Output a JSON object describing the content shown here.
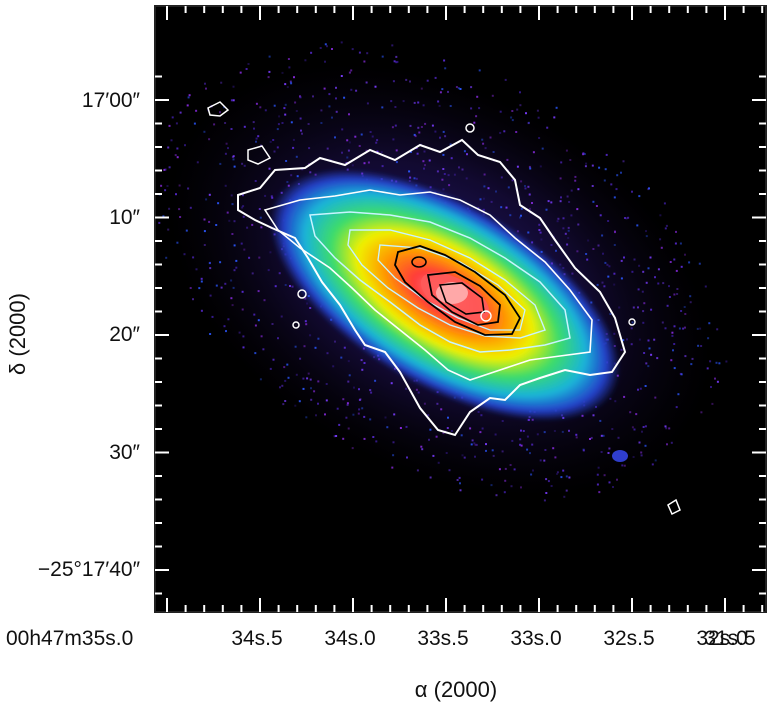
{
  "figure": {
    "y_axis_title": "δ (2000)",
    "x_axis_title": "α (2000)",
    "y_ticks": [
      {
        "label": "17′00″"
      },
      {
        "label": "10″"
      },
      {
        "label": "20″"
      },
      {
        "label": "30″"
      },
      {
        "label": "−25°17′40″"
      }
    ],
    "x_ticks": [
      {
        "label": "00h47m35s.0"
      },
      {
        "label": "34s.5"
      },
      {
        "label": "34s.0"
      },
      {
        "label": "33s.5"
      },
      {
        "label": "33s.0"
      },
      {
        "label": "32s.5"
      },
      {
        "label": "32s.0"
      },
      {
        "label": "31s.5"
      }
    ],
    "colors": {
      "background": "#000000",
      "contour_outer": "#ffffff",
      "contour_mid": "#c8f4ff",
      "contour_inner": "#000000",
      "core": "#ff4b4b"
    }
  }
}
